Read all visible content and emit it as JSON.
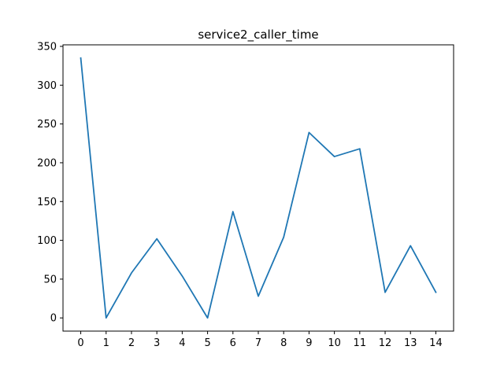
{
  "chart_data": {
    "type": "line",
    "title": "service2_caller_time",
    "xlabel": "",
    "ylabel": "",
    "x": [
      0,
      1,
      2,
      3,
      4,
      5,
      6,
      7,
      8,
      9,
      10,
      11,
      12,
      13,
      14
    ],
    "series": [
      {
        "values": [
          335,
          0,
          58,
          102,
          54,
          0,
          137,
          28,
          104,
          239,
          208,
          218,
          33,
          93,
          33
        ],
        "color": "#1f77b4"
      }
    ],
    "xticks": [
      "0",
      "1",
      "2",
      "3",
      "4",
      "5",
      "6",
      "7",
      "8",
      "9",
      "10",
      "11",
      "12",
      "13",
      "14"
    ],
    "yticks": [
      "0",
      "50",
      "100",
      "150",
      "200",
      "250",
      "300",
      "350"
    ],
    "xlim": [
      -0.7,
      14.7
    ],
    "ylim": [
      -17,
      352
    ],
    "grid": false,
    "legend": "none"
  }
}
